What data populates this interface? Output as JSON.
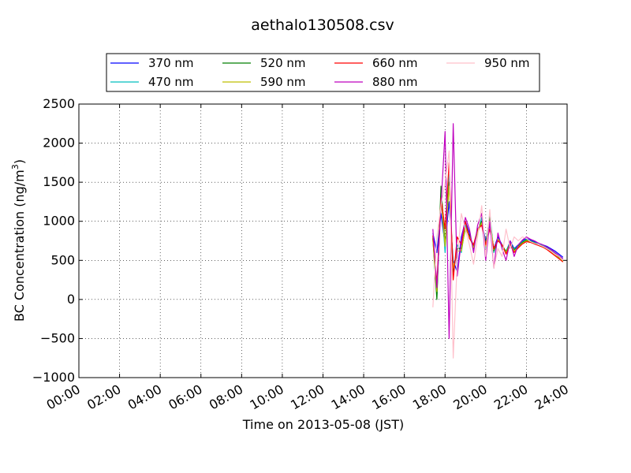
{
  "chart_data": {
    "type": "line",
    "title": "aethalo130508.csv",
    "xlabel": "Time on 2013-05-08 (JST)",
    "ylabel": "BC Concentration (ng/m³)",
    "ylabel_parts": {
      "pre": "BC Concentration (ng/m",
      "sup": "3",
      "post": ")"
    },
    "xlim": [
      0,
      24
    ],
    "ylim": [
      -1000,
      2500
    ],
    "x_unit": "hours",
    "x_ticks": [
      {
        "value": 0,
        "label": "00:00"
      },
      {
        "value": 2,
        "label": "02:00"
      },
      {
        "value": 4,
        "label": "04:00"
      },
      {
        "value": 6,
        "label": "06:00"
      },
      {
        "value": 8,
        "label": "08:00"
      },
      {
        "value": 10,
        "label": "10:00"
      },
      {
        "value": 12,
        "label": "12:00"
      },
      {
        "value": 14,
        "label": "14:00"
      },
      {
        "value": 16,
        "label": "16:00"
      },
      {
        "value": 18,
        "label": "18:00"
      },
      {
        "value": 20,
        "label": "20:00"
      },
      {
        "value": 22,
        "label": "22:00"
      },
      {
        "value": 24,
        "label": "24:00"
      }
    ],
    "y_ticks": [
      {
        "value": -1000,
        "label": "−1000"
      },
      {
        "value": -500,
        "label": "−500"
      },
      {
        "value": 0,
        "label": "0"
      },
      {
        "value": 500,
        "label": "500"
      },
      {
        "value": 1000,
        "label": "1000"
      },
      {
        "value": 1500,
        "label": "1500"
      },
      {
        "value": 2000,
        "label": "2000"
      },
      {
        "value": 2500,
        "label": "2500"
      }
    ],
    "grid": true,
    "legend_placement": "top-center",
    "x": [
      17.4,
      17.6,
      17.8,
      18.0,
      18.2,
      18.4,
      18.6,
      18.8,
      19.0,
      19.2,
      19.4,
      19.6,
      19.8,
      20.0,
      20.2,
      20.4,
      20.6,
      20.8,
      21.0,
      21.2,
      21.4,
      21.6,
      21.8,
      22.0,
      22.2,
      22.4,
      22.6,
      22.8,
      23.0,
      23.2,
      23.4,
      23.6,
      23.8
    ],
    "series": [
      {
        "name": "370 nm",
        "color": "#0000ff",
        "values": [
          850,
          600,
          1100,
          700,
          1250,
          500,
          350,
          800,
          1000,
          850,
          650,
          900,
          1000,
          750,
          950,
          650,
          800,
          700,
          600,
          750,
          650,
          700,
          750,
          780,
          760,
          740,
          720,
          700,
          680,
          650,
          620,
          580,
          540
        ]
      },
      {
        "name": "470 nm",
        "color": "#00bfbf",
        "values": [
          800,
          50,
          1350,
          600,
          1600,
          300,
          700,
          600,
          950,
          800,
          700,
          850,
          1050,
          650,
          1100,
          600,
          780,
          680,
          620,
          730,
          640,
          690,
          740,
          770,
          750,
          730,
          700,
          690,
          660,
          630,
          590,
          560,
          520
        ]
      },
      {
        "name": "520 nm",
        "color": "#007f00",
        "values": [
          780,
          0,
          1450,
          700,
          1500,
          350,
          650,
          650,
          900,
          820,
          680,
          880,
          1000,
          700,
          1050,
          620,
          760,
          700,
          610,
          720,
          630,
          680,
          730,
          760,
          745,
          725,
          700,
          680,
          650,
          620,
          580,
          540,
          500
        ]
      },
      {
        "name": "590 nm",
        "color": "#bfbf00",
        "values": [
          760,
          100,
          1300,
          680,
          1450,
          400,
          620,
          620,
          920,
          800,
          660,
          860,
          980,
          680,
          1000,
          640,
          770,
          690,
          600,
          710,
          620,
          670,
          720,
          750,
          735,
          715,
          690,
          670,
          640,
          610,
          570,
          530,
          490
        ]
      },
      {
        "name": "660 nm",
        "color": "#ff0000",
        "values": [
          820,
          200,
          1300,
          900,
          1750,
          250,
          800,
          700,
          1000,
          780,
          700,
          900,
          950,
          700,
          900,
          650,
          750,
          700,
          580,
          700,
          600,
          660,
          710,
          740,
          730,
          710,
          690,
          670,
          640,
          600,
          560,
          520,
          480
        ]
      },
      {
        "name": "880 nm",
        "color": "#bf00bf",
        "values": [
          900,
          150,
          1200,
          2150,
          -500,
          2250,
          300,
          750,
          1050,
          900,
          600,
          950,
          1100,
          500,
          1000,
          400,
          850,
          650,
          500,
          750,
          550,
          700,
          760,
          800,
          770,
          750,
          720,
          700,
          670,
          640,
          600,
          560,
          520
        ]
      },
      {
        "name": "950 nm",
        "color": "#ffc0cb",
        "values": [
          -100,
          800,
          1200,
          1500,
          1900,
          -750,
          500,
          1100,
          900,
          700,
          450,
          800,
          1200,
          550,
          1150,
          400,
          650,
          550,
          900,
          650,
          800,
          750,
          800,
          780,
          740,
          720,
          700,
          680,
          650,
          620,
          580,
          550,
          500
        ]
      }
    ]
  }
}
